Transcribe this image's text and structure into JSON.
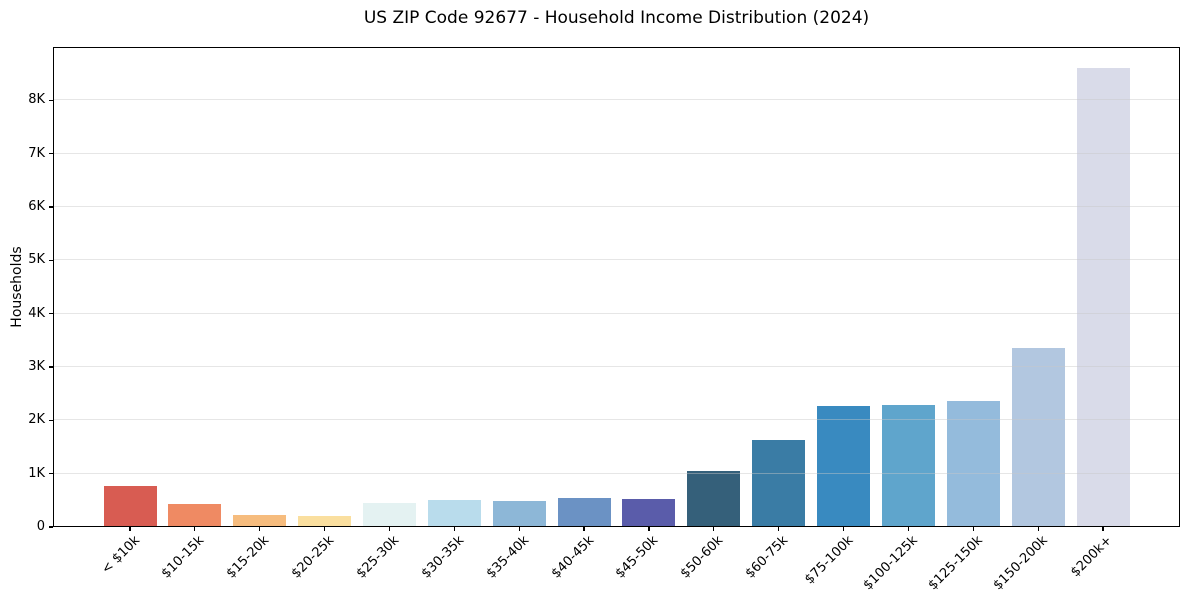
{
  "chart_data": {
    "type": "bar",
    "title": "US ZIP Code 92677 - Household Income Distribution (2024)",
    "xlabel": "",
    "ylabel": "Households",
    "categories": [
      "< $10k",
      "$10-15k",
      "$15-20k",
      "$20-25k",
      "$25-30k",
      "$30-35k",
      "$35-40k",
      "$40-45k",
      "$45-50k",
      "$50-60k",
      "$60-75k",
      "$75-100k",
      "$100-125k",
      "$125-150k",
      "$150-200k",
      "$200k+"
    ],
    "values": [
      760,
      435,
      225,
      215,
      450,
      510,
      480,
      550,
      525,
      1050,
      1630,
      2265,
      2290,
      2360,
      3350,
      8600
    ],
    "bar_colors": [
      "#d85c52",
      "#ef8a63",
      "#f6bc7e",
      "#fadf9f",
      "#e4f2f2",
      "#b9dcec",
      "#8db7d7",
      "#6b92c4",
      "#5a5caa",
      "#35607a",
      "#3a7ca5",
      "#398ac0",
      "#5fa5cc",
      "#94bbdc",
      "#b2c7e0",
      "#d9dbe9"
    ],
    "ylim": [
      0,
      9000
    ],
    "yticks": {
      "values": [
        0,
        1000,
        2000,
        3000,
        4000,
        5000,
        6000,
        7000,
        8000
      ],
      "labels": [
        "0",
        "1K",
        "2K",
        "3K",
        "4K",
        "5K",
        "6K",
        "7K",
        "8K"
      ]
    },
    "grid": "horizontal",
    "xticklabel_rotation": 45,
    "legend": "none",
    "background_color": "#ffffff",
    "axis_color": "#000000",
    "grid_color": "#dcdcdc"
  }
}
